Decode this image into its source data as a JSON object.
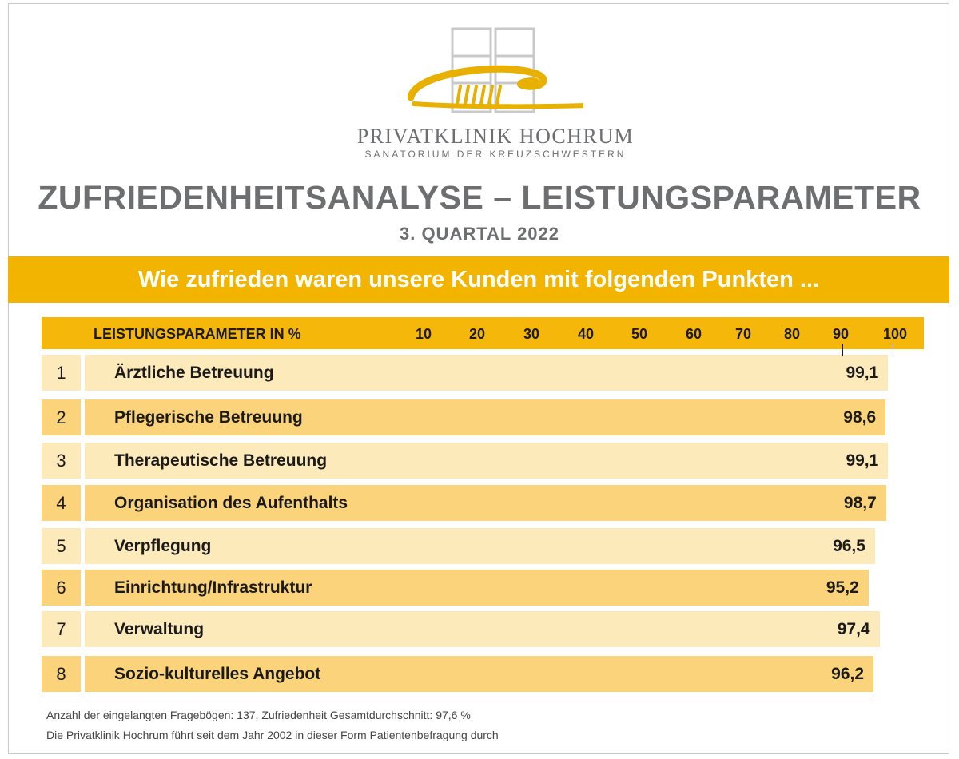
{
  "logo": {
    "name": "PRIVATKLINIK HOCHRUM",
    "sub": "SANATORIUM DER KREUZSCHWESTERN"
  },
  "title": "ZUFRIEDENHEITSANALYSE – LEISTUNGSPARAMETER",
  "subtitle": "3. QUARTAL 2022",
  "banner": "Wie zufrieden waren unsere Kunden mit folgenden Punkten ...",
  "colors": {
    "accent": "#f3b400",
    "header_bar": "#f5b80a",
    "bar_light": "#fdeabb",
    "bar_dark": "#fbd37a",
    "text_gray": "#6d6e70"
  },
  "chart_data": {
    "type": "bar",
    "orientation": "horizontal",
    "title": "",
    "xlabel": "LEISTUNGSPARAMETER IN %",
    "ticks": [
      "10",
      "20",
      "30",
      "40",
      "50",
      "60",
      "70",
      "80",
      "90",
      "100"
    ],
    "xlim": [
      0,
      100
    ],
    "ranks": [
      "1",
      "2",
      "3",
      "4",
      "5",
      "6",
      "7",
      "8"
    ],
    "categories": [
      "Ärztliche Betreuung",
      "Pflegerische Betreuung",
      "Therapeutische Betreuung",
      "Organisation des Aufenthalts",
      "Verpflegung",
      "Einrichtung/Infrastruktur",
      "Verwaltung",
      "Sozio-kulturelles Angebot"
    ],
    "values": [
      99.1,
      98.6,
      99.1,
      98.7,
      96.5,
      95.2,
      97.4,
      96.2
    ],
    "value_labels": [
      "99,1",
      "98,6",
      "99,1",
      "98,7",
      "96,5",
      "95,2",
      "97,4",
      "96,2"
    ]
  },
  "footnotes": [
    "Anzahl der eingelangten Fragebögen: 137, Zufriedenheit Gesamtdurchschnitt: 97,6 %",
    "Die Privatklinik Hochrum führt seit dem Jahr 2002 in dieser Form Patientenbefragung durch"
  ]
}
